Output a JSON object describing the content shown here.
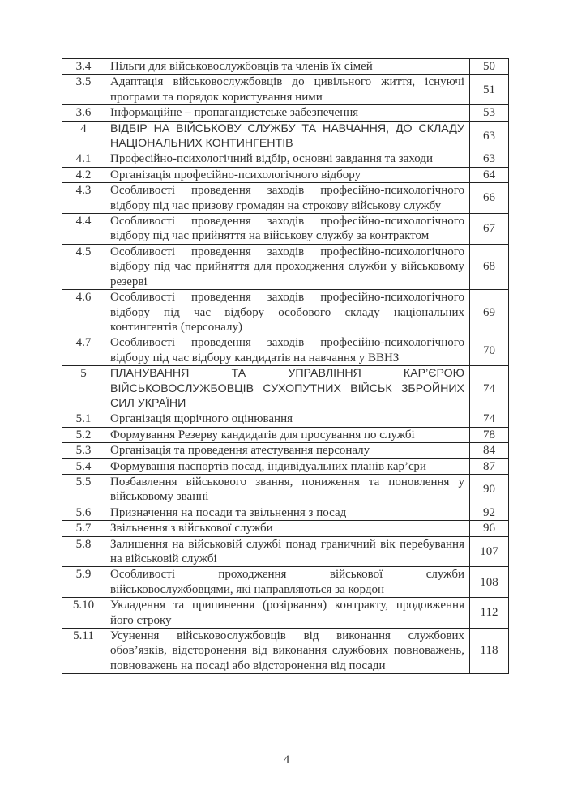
{
  "toc": [
    {
      "num": "3.4",
      "title": "Пільги для військовослужбовців та членів їх сімей",
      "page": "50"
    },
    {
      "num": "3.5",
      "title": "Адаптація військовослужбовців до цивільного життя, існуючі програми та порядок користування ними",
      "page": "51"
    },
    {
      "num": "3.6",
      "title": "Інформаційне – пропагандистське забезпечення",
      "page": "53"
    },
    {
      "num": "4",
      "title": "ВІДБІР НА ВІЙСЬКОВУ СЛУЖБУ ТА НАВЧАННЯ, ДО СКЛАДУ НАЦІОНАЛЬНИХ КОНТИНГЕНТІВ",
      "page": "63",
      "heading": true
    },
    {
      "num": "4.1",
      "title": "Професійно-психологічний відбір, основні завдання та заходи",
      "page": "63"
    },
    {
      "num": "4.2",
      "title": "Організація професійно-психологічного відбору",
      "page": "64"
    },
    {
      "num": "4.3",
      "title": "Особливості проведення заходів професійно-психологічного відбору під час призову громадян на строкову військову службу",
      "page": "66"
    },
    {
      "num": "4.4",
      "title": "Особливості проведення заходів професійно-психологічного відбору під час прийняття на військову службу за контрактом",
      "page": "67"
    },
    {
      "num": "4.5",
      "title": "Особливості проведення заходів професійно-психологічного відбору під час прийняття для проходження служби у військовому резерві",
      "page": "68"
    },
    {
      "num": "4.6",
      "title": "Особливості проведення заходів професійно-психологічного відбору під час відбору особового складу національних контингентів (персоналу)",
      "page": "69"
    },
    {
      "num": "4.7",
      "title": "Особливості проведення заходів професійно-психологічного відбору під час відбору кандидатів на навчання у ВВНЗ",
      "page": "70"
    },
    {
      "num": "5",
      "title": "ПЛАНУВАННЯ ТА УПРАВЛІННЯ КАР’ЄРОЮ ВІЙСЬКОВОСЛУЖБОВЦІВ СУХОПУТНИХ ВІЙСЬК ЗБРОЙНИХ СИЛ УКРАЇНИ",
      "page": "74",
      "heading": true
    },
    {
      "num": "5.1",
      "title": "Організація щорічного оцінювання",
      "page": "74"
    },
    {
      "num": "5.2",
      "title": "Формування Резерву кандидатів для просування по службі",
      "page": "78"
    },
    {
      "num": "5.3",
      "title": "Організація та проведення атестування персоналу",
      "page": "84"
    },
    {
      "num": "5.4",
      "title": "Формування паспортів посад, індивідуальних планів кар’єри",
      "page": "87"
    },
    {
      "num": "5.5",
      "title": "Позбавлення військового звання, пониження та поновлення у військовому званні",
      "page": "90"
    },
    {
      "num": "5.6",
      "title": "Призначення на посади та звільнення з посад",
      "page": "92"
    },
    {
      "num": "5.7",
      "title": "Звільнення з військової служби",
      "page": "96"
    },
    {
      "num": "5.8",
      "title": "Залишення на військовій службі понад граничний вік перебування на військовій службі",
      "page": "107"
    },
    {
      "num": "5.9",
      "title": "Особливості проходження військової служби військовослужбовцями, які направляються за кордон",
      "page": "108"
    },
    {
      "num": "5.10",
      "title": "Укладення та припинення (розірвання) контракту, продовження його строку",
      "page": "112"
    },
    {
      "num": "5.11",
      "title": "Усунення військовослужбовців від виконання службових обов’язків, відсторонення від виконання службових повноважень, повноважень на посаді або відсторонення від посади",
      "page": "118"
    }
  ],
  "page_number": "4"
}
